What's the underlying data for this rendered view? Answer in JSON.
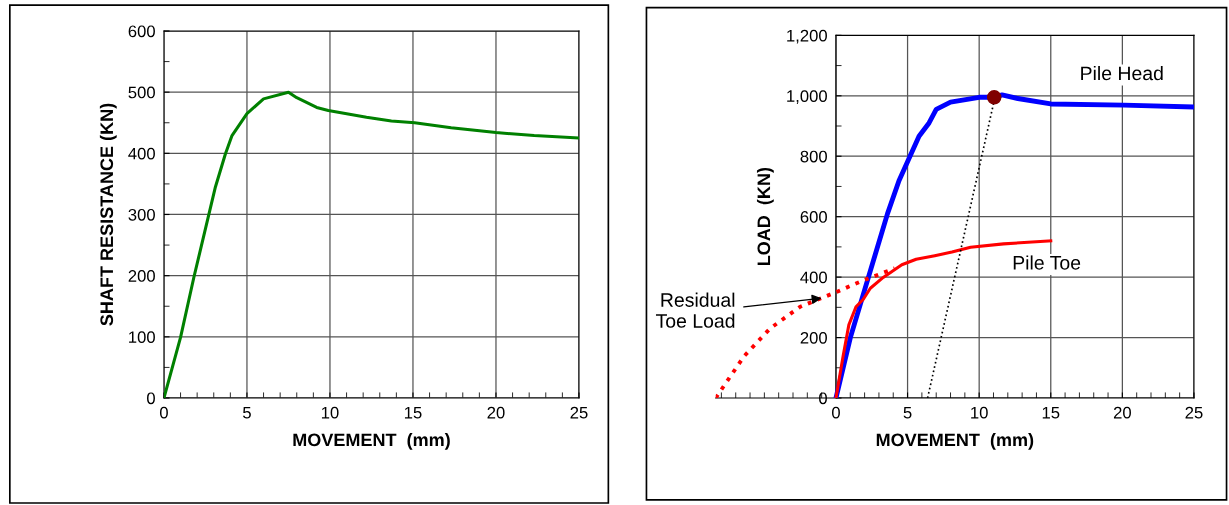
{
  "chart_data": [
    {
      "type": "line",
      "xlabel": "MOVEMENT  (mm)",
      "ylabel": "SHAFT RESISTANCE (KN)",
      "xlim": [
        0,
        25
      ],
      "ylim": [
        0,
        600
      ],
      "xticks": [
        0,
        5,
        10,
        15,
        20,
        25
      ],
      "yticks": [
        0,
        100,
        200,
        300,
        400,
        500,
        600
      ],
      "grid": true,
      "legend": false,
      "series": [
        {
          "color": "#008000",
          "line_style": "solid",
          "x": [
            0,
            1.0,
            1.8,
            3.1,
            3.7,
            4.1,
            5.0,
            6.0,
            7.5,
            8.0,
            9.2,
            9.9,
            12.2,
            13.7,
            15.1,
            17.3,
            20.0,
            22.3,
            25
          ],
          "values": [
            0,
            99,
            197,
            345,
            399,
            429,
            465,
            489,
            500,
            491,
            475,
            470,
            459,
            453,
            450,
            442,
            434,
            429,
            425
          ]
        }
      ]
    },
    {
      "type": "line",
      "xlabel": "MOVEMENT  (mm)",
      "ylabel": "LOAD  (KN)",
      "xlim": [
        -8.4,
        25
      ],
      "ylim": [
        0,
        1200
      ],
      "xticks": [
        0,
        5,
        10,
        15,
        20,
        25
      ],
      "yticks": [
        0,
        200,
        400,
        600,
        800,
        {
          "value": 1000,
          "label": "1,000"
        },
        {
          "value": 1200,
          "label": "1,200"
        }
      ],
      "grid": true,
      "legend": false,
      "series": [
        {
          "name": "Pile Head",
          "color": "#0000ff",
          "line_style": "solid",
          "x": [
            0,
            1.0,
            2.3,
            3.6,
            4.4,
            5.8,
            6.5,
            7.0,
            8.0,
            10.0,
            11.1,
            11.6,
            12.7,
            15.0,
            20.1,
            25
          ],
          "values": [
            0,
            199,
            405,
            610,
            719,
            866,
            910,
            955,
            979,
            995,
            995,
            1003,
            991,
            973,
            969,
            963
          ]
        },
        {
          "name": "Pile Toe",
          "color": "#ff0000",
          "line_style": "solid",
          "x": [
            0,
            0.5,
            0.9,
            1.4,
            1.9,
            2.4,
            3.3,
            4.6,
            5.6,
            6.9,
            8.1,
            9.4,
            11.7,
            15.0
          ],
          "values": [
            0,
            139,
            242,
            302,
            326,
            363,
            399,
            441,
            459,
            471,
            483,
            499,
            510,
            520
          ]
        },
        {
          "name": "Residual\nToe Load",
          "color": "#ff0000",
          "line_style": "dotted",
          "x": [
            -8.4,
            -6.4,
            -4.6,
            -2.5,
            0,
            1.8,
            4.1
          ],
          "values": [
            0,
            139,
            230,
            302,
            350,
            387,
            429
          ]
        },
        {
          "color": "#000000",
          "line_style": "dotted",
          "x": [
            6.4,
            11.1
          ],
          "values": [
            0,
            995
          ]
        },
        {
          "type": "scatter",
          "color": "#800000",
          "marker": "circle",
          "x": [
            11.05
          ],
          "values": [
            995
          ]
        }
      ]
    }
  ]
}
